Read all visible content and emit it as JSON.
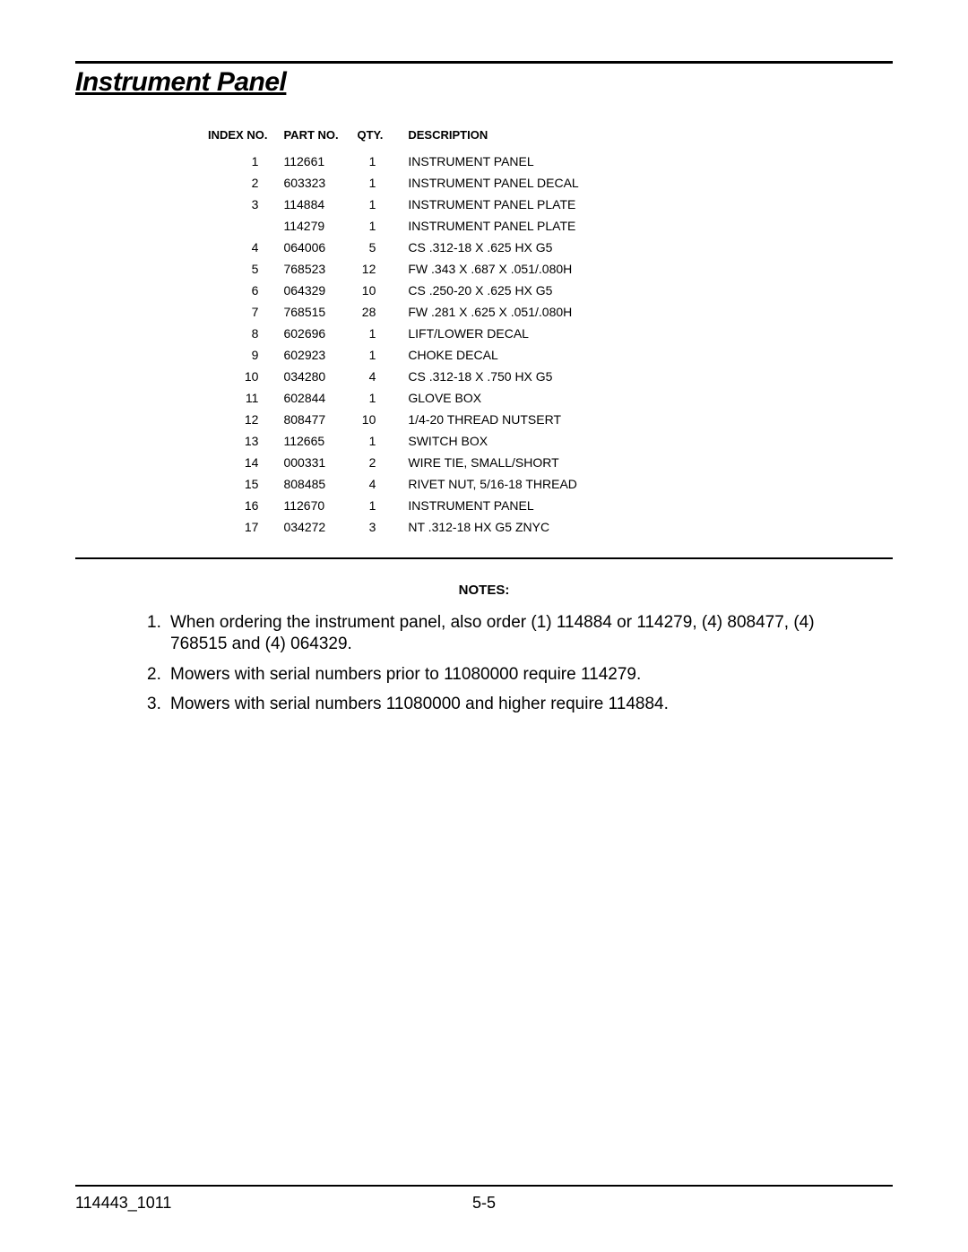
{
  "title": "Instrument Panel",
  "table": {
    "columns": [
      "INDEX NO.",
      "PART NO.",
      "QTY.",
      "DESCRIPTION"
    ],
    "rows": [
      [
        "1",
        "112661",
        "1",
        "INSTRUMENT PANEL"
      ],
      [
        "2",
        "603323",
        "1",
        "INSTRUMENT PANEL DECAL"
      ],
      [
        "3",
        "114884",
        "1",
        "INSTRUMENT PANEL PLATE"
      ],
      [
        "",
        "114279",
        "1",
        "INSTRUMENT PANEL PLATE"
      ],
      [
        "4",
        "064006",
        "5",
        "CS .312-18 X .625 HX G5"
      ],
      [
        "5",
        "768523",
        "12",
        "FW .343 X .687 X .051/.080H"
      ],
      [
        "6",
        "064329",
        "10",
        "CS .250-20 X .625 HX G5"
      ],
      [
        "7",
        "768515",
        "28",
        "FW .281 X .625 X .051/.080H"
      ],
      [
        "8",
        "602696",
        "1",
        "LIFT/LOWER DECAL"
      ],
      [
        "9",
        "602923",
        "1",
        "CHOKE DECAL"
      ],
      [
        "10",
        "034280",
        "4",
        "CS .312-18 X .750 HX G5"
      ],
      [
        "11",
        "602844",
        "1",
        "GLOVE BOX"
      ],
      [
        "12",
        "808477",
        "10",
        "1/4-20 THREAD NUTSERT"
      ],
      [
        "13",
        "112665",
        "1",
        "SWITCH BOX"
      ],
      [
        "14",
        "000331",
        "2",
        "WIRE TIE, SMALL/SHORT"
      ],
      [
        "15",
        "808485",
        "4",
        "RIVET NUT, 5/16-18 THREAD"
      ],
      [
        "16",
        "112670",
        "1",
        "INSTRUMENT PANEL"
      ],
      [
        "17",
        "034272",
        "3",
        "NT .312-18 HX G5 ZNYC"
      ]
    ]
  },
  "notes_heading": "NOTES:",
  "notes": [
    "When ordering the instrument panel, also order (1) 114884 or 114279, (4) 808477, (4) 768515 and (4) 064329.",
    "Mowers with serial numbers prior to 11080000 require 114279.",
    "Mowers with serial numbers 11080000 and higher require 114884."
  ],
  "footer": {
    "left": "114443_1011",
    "center": "5-5"
  },
  "colors": {
    "text": "#000000",
    "background": "#ffffff",
    "rule": "#000000"
  },
  "typography": {
    "title_fontsize": 30,
    "title_style": "bold italic underline",
    "table_header_fontsize": 13,
    "table_cell_fontsize": 14,
    "notes_heading_fontsize": 15,
    "notes_fontsize": 19,
    "footer_fontsize": 18,
    "font_family": "Arial"
  }
}
